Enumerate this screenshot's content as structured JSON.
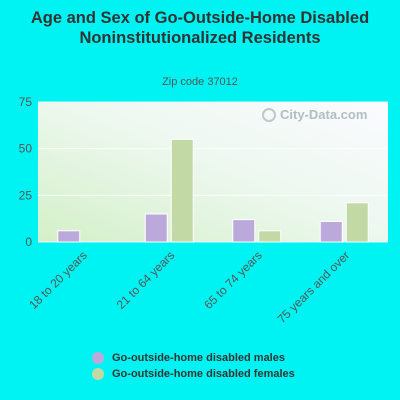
{
  "colors": {
    "background": "#00f3f3",
    "males": "#bca9db",
    "females": "#c2d9a5",
    "text": "#333333",
    "axis_text": "#555555"
  },
  "watermark": "City-Data.com",
  "chart_data": {
    "type": "bar",
    "title": "Age and Sex of Go-Outside-Home Disabled Noninstitutionalized Residents",
    "subtitle": "Zip code 37012",
    "categories": [
      "18 to 20 years",
      "21 to 64 years",
      "65 to 74 years",
      "75 years and over"
    ],
    "series": [
      {
        "name": "Go-outside-home disabled males",
        "values": [
          6,
          15,
          12,
          11
        ]
      },
      {
        "name": "Go-outside-home disabled females",
        "values": [
          0,
          55,
          6,
          21
        ]
      }
    ],
    "ylim": [
      0,
      75
    ],
    "yticks": [
      0,
      25,
      50,
      75
    ],
    "xlabel": "",
    "ylabel": "",
    "grid": true,
    "legend_position": "bottom"
  }
}
